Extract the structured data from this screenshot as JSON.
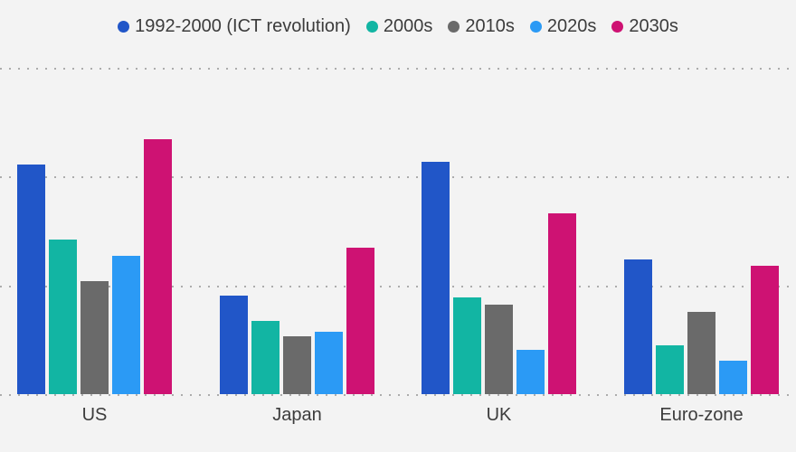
{
  "chart_data": {
    "type": "bar",
    "title": "",
    "xlabel": "",
    "ylabel": "",
    "categories": [
      "US",
      "Japan",
      "UK",
      "Euro-zone"
    ],
    "series": [
      {
        "name": "1992-2000 (ICT revolution)",
        "color": "#2156C8",
        "values": [
          2.11,
          0.91,
          2.14,
          1.24
        ]
      },
      {
        "name": "2000s",
        "color": "#12B5A3",
        "values": [
          1.42,
          0.67,
          0.89,
          0.45
        ]
      },
      {
        "name": "2010s",
        "color": "#6A6A6A",
        "values": [
          1.04,
          0.53,
          0.82,
          0.76
        ]
      },
      {
        "name": "2020s",
        "color": "#2B9AF5",
        "values": [
          1.27,
          0.57,
          0.41,
          0.31
        ]
      },
      {
        "name": "2030s",
        "color": "#CE1273",
        "values": [
          2.34,
          1.35,
          1.66,
          1.18
        ]
      }
    ],
    "ylim": [
      0,
      3
    ],
    "gridlines": [
      0,
      1,
      2,
      3
    ],
    "grid": "horizontal-dotted",
    "legend_position": "top-center"
  },
  "colors": {
    "background": "#F3F3F3",
    "gridline": "#ACACAC",
    "text": "#3C3C3C"
  }
}
